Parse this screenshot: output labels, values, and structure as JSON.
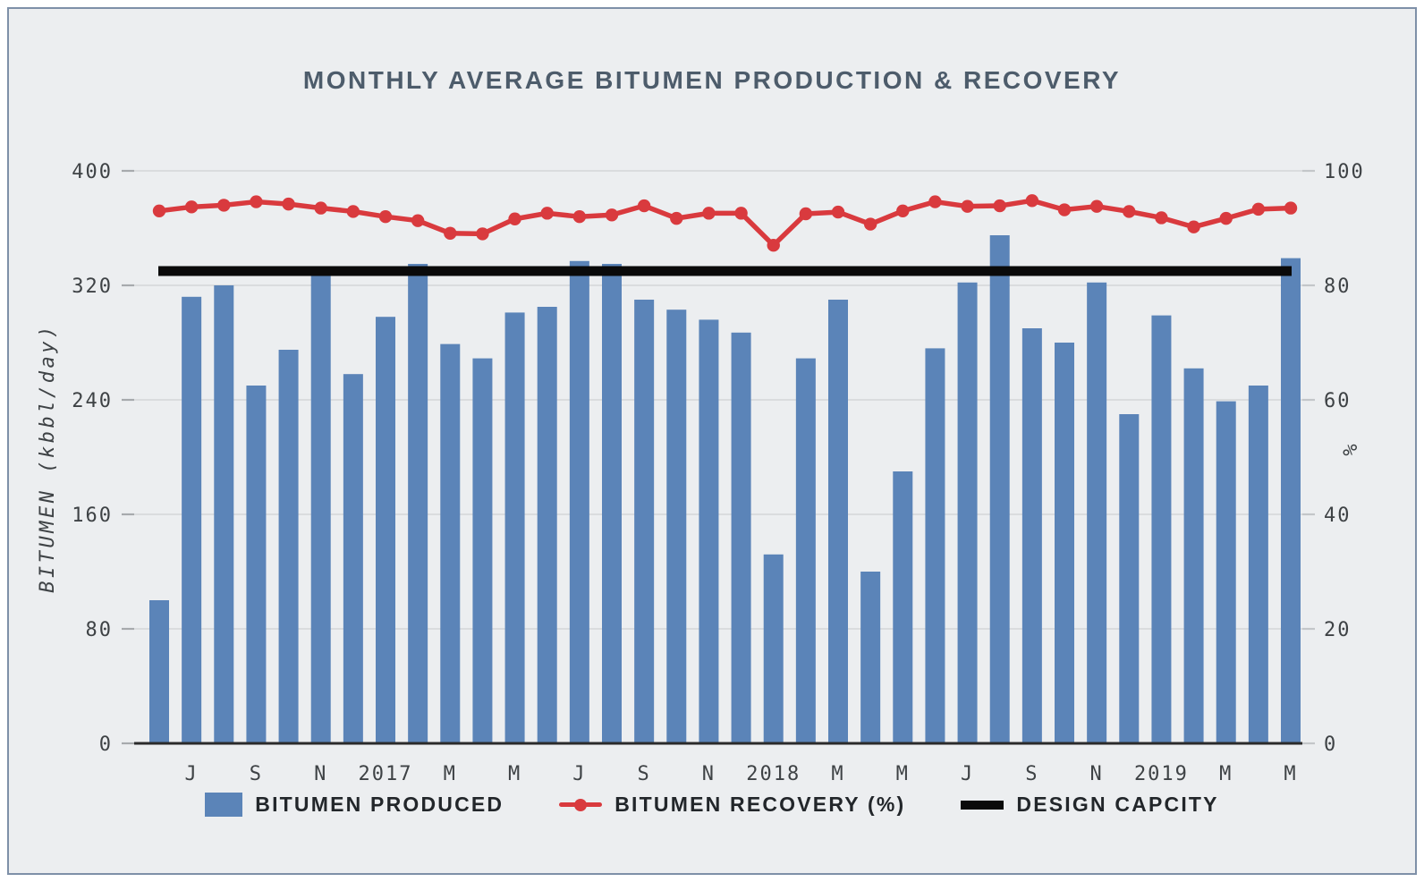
{
  "title": "MONTHLY AVERAGE BITUMEN PRODUCTION & RECOVERY",
  "colors": {
    "background": "#eceef0",
    "border": "#7e90a8",
    "bar": "#5b84b8",
    "recovery_line": "#d93a3e",
    "design_line": "#0a0a0a",
    "gridline": "#d7d9dc",
    "axis_line": "#2b2b2b",
    "tick_text": "#3e4245",
    "title_text": "#4d5c6b"
  },
  "left_axis": {
    "label": "BITUMEN (kbbl/day)",
    "ticks": [
      400,
      320,
      240,
      160,
      80,
      0
    ]
  },
  "right_axis": {
    "label": "%",
    "ticks": [
      100,
      80,
      60,
      40,
      20,
      0
    ]
  },
  "legend": {
    "items": [
      {
        "label": "BITUMEN PRODUCED"
      },
      {
        "label": "BITUMEN RECOVERY (%)"
      },
      {
        "label": "DESIGN CAPCITY"
      }
    ]
  },
  "chart_data": {
    "type": "combo-bar-line",
    "title": "MONTHLY AVERAGE BITUMEN PRODUCTION & RECOVERY",
    "x_labels": [
      "",
      "J",
      "",
      "S",
      "",
      "N",
      "",
      "2017",
      "",
      "M",
      "",
      "M",
      "",
      "J",
      "",
      "S",
      "",
      "N",
      "",
      "2018",
      "",
      "M",
      "",
      "M",
      "",
      "J",
      "",
      "S",
      "",
      "N",
      "",
      "2019",
      "",
      "M",
      "",
      "M"
    ],
    "left_ylim": [
      0,
      400
    ],
    "right_ylim": [
      0,
      100
    ],
    "ylabel_left": "BITUMEN (kbbl/day)",
    "ylabel_right": "%",
    "grid": true,
    "legend_position": "bottom",
    "series": [
      {
        "name": "BITUMEN PRODUCED",
        "type": "bar",
        "axis": "left",
        "values": [
          100,
          312,
          320,
          250,
          275,
          327,
          258,
          298,
          335,
          279,
          269,
          301,
          305,
          337,
          335,
          310,
          303,
          296,
          287,
          132,
          269,
          310,
          120,
          190,
          276,
          322,
          355,
          290,
          280,
          322,
          230,
          299,
          262,
          239,
          250,
          339
        ]
      },
      {
        "name": "BITUMEN RECOVERY (%)",
        "type": "line",
        "axis": "right",
        "values": [
          93.0,
          93.7,
          94.0,
          94.6,
          94.2,
          93.5,
          92.9,
          92.0,
          91.3,
          89.1,
          89.0,
          91.6,
          92.6,
          92.0,
          92.3,
          93.9,
          91.7,
          92.6,
          92.6,
          87.0,
          92.5,
          92.8,
          90.7,
          93.0,
          94.6,
          93.8,
          93.9,
          94.8,
          93.2,
          93.8,
          92.9,
          91.8,
          90.2,
          91.7,
          93.3,
          93.5
        ]
      },
      {
        "name": "DESIGN CAPCITY",
        "type": "hline",
        "axis": "left",
        "value": 330
      }
    ]
  }
}
